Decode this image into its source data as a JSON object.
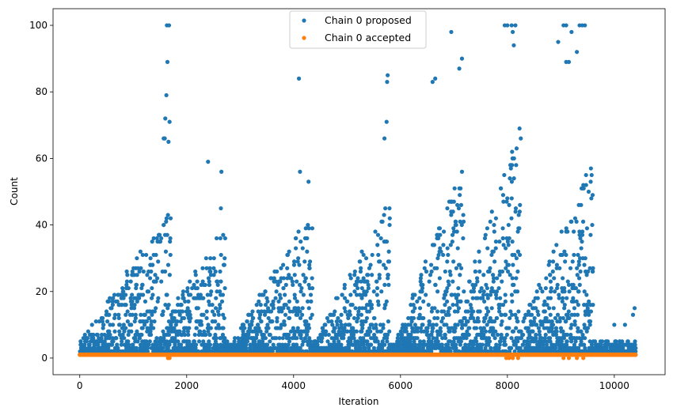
{
  "chart_data": {
    "type": "scatter",
    "title": "",
    "xlabel": "Iteration",
    "ylabel": "Count",
    "xlim": [
      -500,
      10950
    ],
    "ylim": [
      -5,
      105
    ],
    "xticks": [
      0,
      2000,
      4000,
      6000,
      8000,
      10000
    ],
    "yticks": [
      0,
      20,
      40,
      60,
      80,
      100
    ],
    "grid": false,
    "legend_position": "top-center",
    "series": [
      {
        "name": "Chain 0 proposed",
        "color": "#1f77b4",
        "x_range": [
          0,
          10400
        ],
        "note_points": [
          [
            1630,
            100
          ],
          [
            1670,
            100
          ],
          [
            1640,
            89
          ],
          [
            1620,
            79
          ],
          [
            1600,
            72
          ],
          [
            1680,
            71
          ],
          [
            1660,
            65
          ],
          [
            1590,
            66
          ],
          [
            1570,
            66
          ],
          [
            2400,
            59
          ],
          [
            2650,
            56
          ],
          [
            2640,
            45
          ],
          [
            4100,
            84
          ],
          [
            4120,
            56
          ],
          [
            4280,
            53
          ],
          [
            5760,
            85
          ],
          [
            5750,
            83
          ],
          [
            5740,
            71
          ],
          [
            5700,
            66
          ],
          [
            6950,
            98
          ],
          [
            7150,
            90
          ],
          [
            7100,
            87
          ],
          [
            6650,
            84
          ],
          [
            6600,
            83
          ],
          [
            7950,
            100
          ],
          [
            8000,
            100
          ],
          [
            8080,
            100
          ],
          [
            8150,
            100
          ],
          [
            8100,
            98
          ],
          [
            8120,
            94
          ],
          [
            9050,
            100
          ],
          [
            9100,
            100
          ],
          [
            9350,
            100
          ],
          [
            9400,
            100
          ],
          [
            9450,
            100
          ],
          [
            9200,
            98
          ],
          [
            9300,
            92
          ],
          [
            8950,
            95
          ],
          [
            9100,
            89
          ],
          [
            9150,
            89
          ],
          [
            10000,
            10
          ],
          [
            10380,
            15
          ],
          [
            10350,
            13
          ],
          [
            10200,
            10
          ]
        ]
      },
      {
        "name": "Chain 0 accepted",
        "color": "#ff7f0e",
        "x_range": [
          0,
          10400
        ],
        "values_typical": [
          1
        ],
        "note_points": [
          [
            1650,
            0
          ],
          [
            1680,
            0
          ],
          [
            7980,
            0
          ],
          [
            8030,
            0
          ],
          [
            8100,
            0
          ],
          [
            8200,
            0
          ],
          [
            9050,
            0
          ],
          [
            9150,
            0
          ],
          [
            9300,
            0
          ],
          [
            9420,
            0
          ]
        ]
      }
    ],
    "regime_peaks": [
      {
        "x_center": 1200,
        "x_end": 1700,
        "typical_max": 45
      },
      {
        "x_center": 2500,
        "x_end": 2720,
        "typical_max": 40
      },
      {
        "x_center": 4050,
        "x_end": 4350,
        "typical_max": 45
      },
      {
        "x_center": 5600,
        "x_end": 5800,
        "typical_max": 50
      },
      {
        "x_center": 7100,
        "x_end": 7200,
        "typical_max": 60
      },
      {
        "x_center": 8100,
        "x_end": 8250,
        "typical_max": 70
      },
      {
        "x_center": 9300,
        "x_end": 9600,
        "typical_max": 60
      }
    ]
  }
}
